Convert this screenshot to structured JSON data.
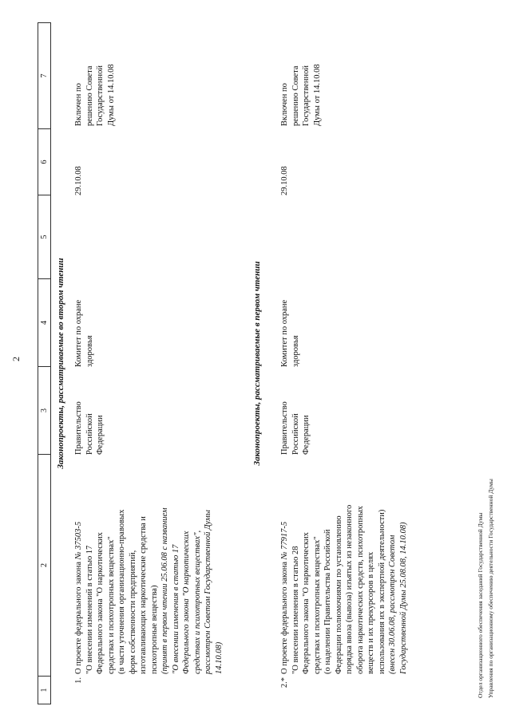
{
  "page": {
    "number": "2"
  },
  "table": {
    "header_cols": [
      "1",
      "2",
      "3",
      "4",
      "5",
      "6",
      "7"
    ],
    "sections": [
      {
        "title": "Законопроекты, рассматриваемые во втором чтении",
        "items": [
          {
            "num": "1.",
            "title_lines": [
              [
                {
                  "t": "О проекте федерального закона "
                },
                {
                  "t": "№ 37503-5",
                  "i": true
                }
              ],
              "\"О внесении изменений в статью 17",
              "Федерального закона \"О наркотических",
              "средствах и психотропных веществах\"",
              "(в части уточнения организационно-правовых",
              "форм собственности предприятий,",
              "изготавливающих наркотические средства и",
              "психотропные вещества)",
              {
                "t": "(принят в первом чтении 25.06.08 с названием",
                "i": true
              },
              {
                "t": "\"О внесении изменения в статью 17",
                "i": true
              },
              {
                "t": "Федерального закона \"О наркотических",
                "i": true
              },
              {
                "t": "средствах и психотропных веществах\",",
                "i": true
              },
              {
                "t": "рассмотрен Советом Государственной Думы",
                "i": true
              },
              {
                "t": "14.10.08)",
                "i": true
              }
            ],
            "initiator_lines": [
              "Правительство",
              "Российской",
              "Федерации"
            ],
            "committee_lines": [
              "Комитет по охране",
              "здоровья"
            ],
            "date": "29.10.08",
            "decision_lines": [
              "Включен по",
              "решению Совета",
              "Государственной",
              "Думы от 14.10.08"
            ]
          }
        ]
      },
      {
        "title": "Законопроекты, рассматриваемые в первом чтении",
        "items": [
          {
            "num": "2.*",
            "title_lines": [
              [
                {
                  "t": "О проекте федерального закона "
                },
                {
                  "t": "№ 77917-5",
                  "i": true
                }
              ],
              "\"О внесении изменения в статью 28",
              "Федерального закона \"О наркотических",
              "средствах и психотропных веществах\"",
              "(о наделении Правительства Российской",
              "Федерации полномочиями по установлению",
              "порядка ввоза (вывоза) изъятых из незаконного",
              "оборота наркотических средств, психотропных",
              "веществ и их прекурсоров в целях",
              "использования их в экспертной деятельности)",
              {
                "t": "(внесен 30.06.08, рассмотрен Советом",
                "i": true
              },
              {
                "t": "Государственной Думы 25.08.08, 14.10.08)",
                "i": true
              }
            ],
            "initiator_lines": [
              "Правительство",
              "Российской",
              "Федерации"
            ],
            "committee_lines": [
              "Комитет по охране",
              "здоровья"
            ],
            "date": "29.10.08",
            "decision_lines": [
              "Включен по",
              "решению Совета",
              "Государственной",
              "Думы от 14.10.08"
            ]
          }
        ]
      }
    ]
  },
  "footer": {
    "line1": "Отдел организационного обеспечения заседаний Государственной Думы",
    "line2": "Управления по организационному обеспечению деятельности Государственной Думы"
  }
}
